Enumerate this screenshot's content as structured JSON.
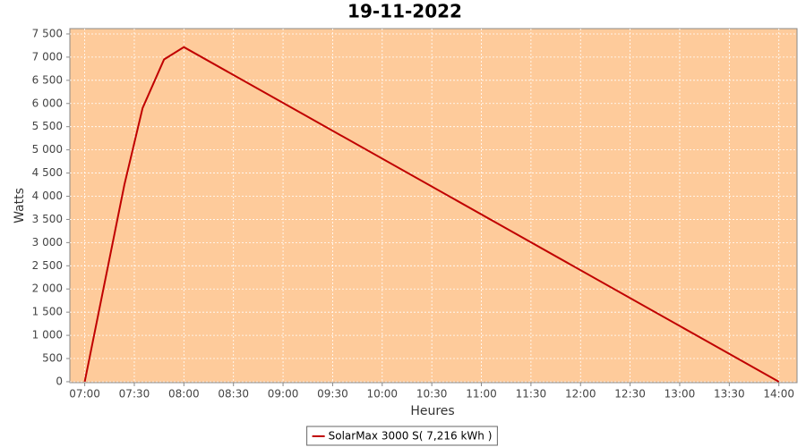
{
  "chart_data": {
    "type": "line",
    "title": "19-11-2022",
    "x_label": "Heures",
    "y_label": "Watts",
    "x": [
      "07:00",
      "07:24",
      "07:35",
      "07:48",
      "08:00",
      "14:00"
    ],
    "series": [
      {
        "name": "SolarMax 3000 S( 7,216 kWh )",
        "color": "#c00000",
        "values": [
          0,
          4250,
          5900,
          6950,
          7216,
          0
        ]
      }
    ],
    "xlim": [
      "06:51",
      "14:11"
    ],
    "xticks": [
      "07:00",
      "07:30",
      "08:00",
      "08:30",
      "09:00",
      "09:30",
      "10:00",
      "10:30",
      "11:00",
      "11:30",
      "12:00",
      "12:30",
      "13:00",
      "13:30",
      "14:00"
    ],
    "ylim": [
      -20,
      7615
    ],
    "yticks": [
      0,
      500,
      {
        "value": 1000,
        "label": "1 000"
      },
      {
        "value": 1500,
        "label": "1 500"
      },
      {
        "value": 2000,
        "label": "2 000"
      },
      {
        "value": 2500,
        "label": "2 500"
      },
      {
        "value": 3000,
        "label": "3 000"
      },
      {
        "value": 3500,
        "label": "3 500"
      },
      {
        "value": 4000,
        "label": "4 000"
      },
      {
        "value": 4500,
        "label": "4 500"
      },
      {
        "value": 5000,
        "label": "5 000"
      },
      {
        "value": 5500,
        "label": "5 500"
      },
      {
        "value": 6000,
        "label": "6 000"
      },
      {
        "value": 6500,
        "label": "6 500"
      },
      {
        "value": 7000,
        "label": "7 000"
      },
      {
        "value": 7500,
        "label": "7 500"
      }
    ],
    "grid": true,
    "plot_background": "#fecb9b",
    "legend": "bottom"
  }
}
